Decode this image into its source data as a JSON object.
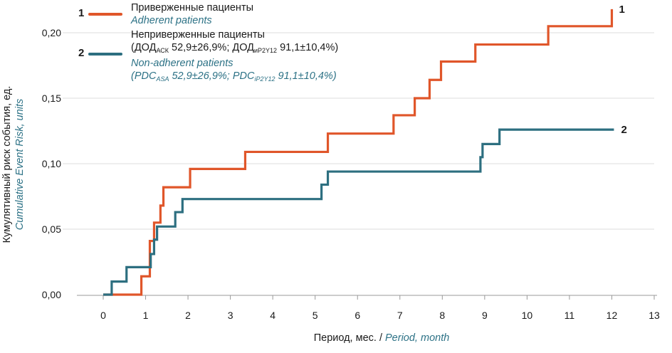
{
  "colors": {
    "series1": "#e0562a",
    "series2": "#2d6f80",
    "english": "#2d7286",
    "axis": "#999999",
    "grid": "#dedede"
  },
  "legend": {
    "item1": {
      "number": "1",
      "ru": "Приверженные пациенты",
      "en": "Adherent patients"
    },
    "item2": {
      "number": "2",
      "ru": "Неприверженные пациенты",
      "ru2_a": "(ДОД",
      "ru2_sub1": "АСК",
      "ru2_b": " 52,9±26,9%; ДОД",
      "ru2_sub2": "иP2Y12",
      "ru2_c": " 91,1±10,4%)",
      "en": "Non-adherent patients",
      "en2_a": "(PDC",
      "en2_sub1": "ASA",
      "en2_b": " 52,9±26,9%; PDC",
      "en2_sub2": "iP2Y12",
      "en2_c": " 91,1±10,4%)"
    }
  },
  "chart_data": {
    "type": "line",
    "step": true,
    "xlabel_ru": "Период, мес. / ",
    "xlabel_en": "Period, month",
    "ylabel_ru": "Кумулятивный риск события, ед.",
    "ylabel_en": "Cumulative Event Risk, units",
    "xlim": [
      0,
      13
    ],
    "ylim": [
      0,
      0.2
    ],
    "x_ticks": [
      "0",
      "1",
      "2",
      "3",
      "4",
      "5",
      "6",
      "7",
      "8",
      "9",
      "10",
      "11",
      "12",
      "13"
    ],
    "y_ticks": [
      {
        "value": 0,
        "label": "0,00"
      },
      {
        "value": 0.05,
        "label": "0,05"
      },
      {
        "value": 0.1,
        "label": "0,10"
      },
      {
        "value": 0.15,
        "label": "0,15"
      },
      {
        "value": 0.2,
        "label": "0,20"
      }
    ],
    "series": [
      {
        "name": "Adherent patients",
        "end_label": "1",
        "points": [
          [
            0,
            0
          ],
          [
            0.9,
            0.014
          ],
          [
            1.1,
            0.041
          ],
          [
            1.2,
            0.055
          ],
          [
            1.35,
            0.068
          ],
          [
            1.42,
            0.082
          ],
          [
            2.05,
            0.096
          ],
          [
            3.35,
            0.109
          ],
          [
            5.3,
            0.123
          ],
          [
            6.85,
            0.137
          ],
          [
            7.35,
            0.15
          ],
          [
            7.7,
            0.164
          ],
          [
            7.97,
            0.178
          ],
          [
            8.78,
            0.191
          ],
          [
            10.5,
            0.205
          ],
          [
            12.0,
            0.218
          ]
        ]
      },
      {
        "name": "Non-adherent patients",
        "end_label": "2",
        "points": [
          [
            0,
            0
          ],
          [
            0.2,
            0.01
          ],
          [
            0.55,
            0.021
          ],
          [
            1.12,
            0.031
          ],
          [
            1.2,
            0.042
          ],
          [
            1.27,
            0.052
          ],
          [
            1.7,
            0.063
          ],
          [
            1.87,
            0.073
          ],
          [
            5.15,
            0.084
          ],
          [
            5.3,
            0.094
          ],
          [
            8.9,
            0.105
          ],
          [
            8.95,
            0.115
          ],
          [
            9.35,
            0.126
          ],
          [
            12.05,
            0.126
          ]
        ]
      }
    ]
  }
}
